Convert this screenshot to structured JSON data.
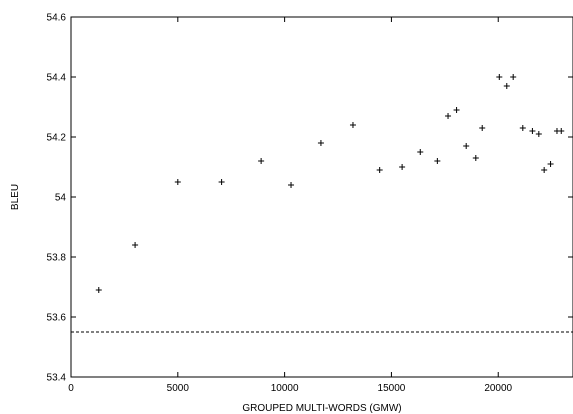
{
  "chart_data": {
    "type": "scatter",
    "xlabel": "GROUPED MULTI-WORDS (GMW)",
    "ylabel": "BLEU",
    "xlim": [
      0,
      23500
    ],
    "ylim": [
      53.4,
      54.6
    ],
    "x_ticks": [
      0,
      5000,
      10000,
      15000,
      20000
    ],
    "x_tick_labels": [
      "0",
      "5000",
      "10000",
      "15000",
      "20000"
    ],
    "y_ticks": [
      53.4,
      53.6,
      53.8,
      54.0,
      54.2,
      54.4,
      54.6
    ],
    "y_tick_labels": [
      "53.4",
      "53.6",
      "53.8",
      "54",
      "54.2",
      "54.4",
      "54.6"
    ],
    "grid": false,
    "marker": "plus",
    "baseline": {
      "y": 53.55,
      "style": "dashed"
    },
    "points": [
      {
        "x": 1300,
        "y": 53.69
      },
      {
        "x": 3000,
        "y": 53.84
      },
      {
        "x": 5000,
        "y": 54.05
      },
      {
        "x": 7050,
        "y": 54.05
      },
      {
        "x": 8900,
        "y": 54.12
      },
      {
        "x": 10300,
        "y": 54.04
      },
      {
        "x": 11700,
        "y": 54.18
      },
      {
        "x": 13200,
        "y": 54.24
      },
      {
        "x": 14450,
        "y": 54.09
      },
      {
        "x": 15500,
        "y": 54.1
      },
      {
        "x": 16350,
        "y": 54.15
      },
      {
        "x": 17150,
        "y": 54.12
      },
      {
        "x": 17650,
        "y": 54.27
      },
      {
        "x": 18050,
        "y": 54.29
      },
      {
        "x": 18500,
        "y": 54.17
      },
      {
        "x": 18950,
        "y": 54.13
      },
      {
        "x": 19250,
        "y": 54.23
      },
      {
        "x": 20050,
        "y": 54.4
      },
      {
        "x": 20400,
        "y": 54.37
      },
      {
        "x": 20700,
        "y": 54.4
      },
      {
        "x": 21150,
        "y": 54.23
      },
      {
        "x": 21600,
        "y": 54.22
      },
      {
        "x": 21900,
        "y": 54.21
      },
      {
        "x": 22150,
        "y": 54.09
      },
      {
        "x": 22450,
        "y": 54.11
      },
      {
        "x": 22750,
        "y": 54.22
      },
      {
        "x": 22950,
        "y": 54.22
      }
    ]
  }
}
